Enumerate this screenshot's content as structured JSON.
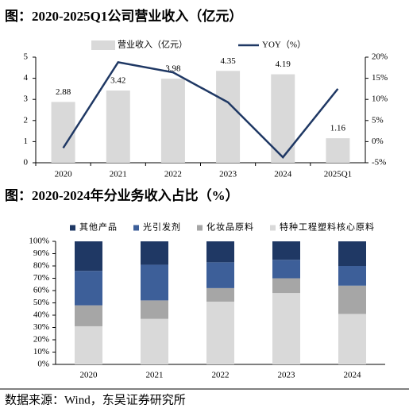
{
  "chart_data": [
    {
      "type": "bar",
      "title": "图：2020-2025Q1公司营业收入（亿元）",
      "categories": [
        "2020",
        "2021",
        "2022",
        "2023",
        "2024",
        "2025Q1"
      ],
      "series": [
        {
          "name": "营业收入（亿元）",
          "color": "#d9d9d9",
          "values": [
            2.88,
            3.42,
            3.98,
            4.35,
            4.19,
            1.16
          ]
        },
        {
          "name": "YOY（%）",
          "type": "line",
          "axis": "y2",
          "color": "#1f3864",
          "values": [
            -1.5,
            18.8,
            16.4,
            9.3,
            -3.7,
            12.5
          ]
        }
      ],
      "ylim": [
        0,
        5
      ],
      "yticks": [
        0,
        1,
        2,
        3,
        4,
        5
      ],
      "y2lim": [
        -5,
        20
      ],
      "y2ticks": [
        {
          "value": -5,
          "label": "-5%"
        },
        {
          "value": 0,
          "label": "0%"
        },
        {
          "value": 5,
          "label": "5%"
        },
        {
          "value": 10,
          "label": "10%"
        },
        {
          "value": 15,
          "label": "15%"
        },
        {
          "value": 20,
          "label": "20%"
        }
      ]
    },
    {
      "type": "stacked_bar",
      "title": "图：2020-2024年分业务收入占比（%）",
      "categories": [
        "2020",
        "2021",
        "2022",
        "2023",
        "2024"
      ],
      "series": [
        {
          "name": "特种工程塑料核心原料",
          "color": "#d9d9d9",
          "values": [
            31,
            37,
            51,
            58,
            41
          ]
        },
        {
          "name": "化妆品原料",
          "color": "#a6a6a6",
          "values": [
            17,
            15,
            11,
            12,
            23
          ]
        },
        {
          "name": "光引发剂",
          "color": "#3d5f99",
          "values": [
            28,
            29,
            21,
            15,
            16
          ]
        },
        {
          "name": "其他产品",
          "color": "#1f3864",
          "values": [
            24,
            19,
            17,
            15,
            20
          ]
        }
      ],
      "ylim": [
        0,
        100
      ],
      "yticks": [
        {
          "value": 0,
          "label": "0%"
        },
        {
          "value": 10,
          "label": "10%"
        },
        {
          "value": 20,
          "label": "20%"
        },
        {
          "value": 30,
          "label": "30%"
        },
        {
          "value": 40,
          "label": "40%"
        },
        {
          "value": 50,
          "label": "50%"
        },
        {
          "value": 60,
          "label": "60%"
        },
        {
          "value": 70,
          "label": "70%"
        },
        {
          "value": 80,
          "label": "80%"
        },
        {
          "value": 90,
          "label": "90%"
        },
        {
          "value": 100,
          "label": "100%"
        }
      ]
    }
  ],
  "source": "数据来源：Wind，东吴证券研究所"
}
